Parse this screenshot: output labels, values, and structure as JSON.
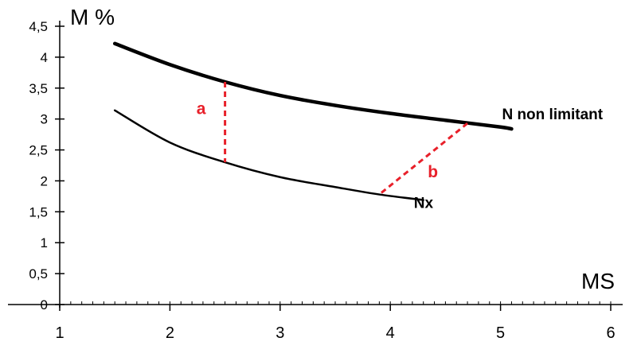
{
  "chart_data": {
    "type": "line",
    "ylabel": "M %",
    "xlabel": "MS",
    "xlim": [
      1,
      6
    ],
    "ylim": [
      0,
      4.5
    ],
    "x_ticks": [
      "1",
      "2",
      "3",
      "4",
      "5",
      "6"
    ],
    "y_ticks": [
      "0",
      "0,5",
      "1",
      "1,5",
      "2",
      "2,5",
      "3",
      "3,5",
      "4",
      "4,5"
    ],
    "grid": false,
    "series": [
      {
        "name": "N non limitant",
        "color": "#000000",
        "x": [
          1.5,
          2,
          2.5,
          3,
          3.5,
          4,
          4.5,
          5,
          5.1
        ],
        "y": [
          4.22,
          3.88,
          3.6,
          3.38,
          3.22,
          3.09,
          2.98,
          2.87,
          2.84
        ]
      },
      {
        "name": "Nx",
        "color": "#000000",
        "x": [
          1.5,
          2,
          2.5,
          3,
          3.5,
          3.9,
          4.3
        ],
        "y": [
          3.14,
          2.62,
          2.3,
          2.06,
          1.9,
          1.78,
          1.69
        ]
      }
    ],
    "annotations": [
      {
        "label": "a",
        "color": "#e8202a",
        "x1": 2.5,
        "y1": 3.6,
        "x2": 2.5,
        "y2": 2.3
      },
      {
        "label": "b",
        "color": "#e8202a",
        "x1": 4.7,
        "y1": 2.93,
        "x2": 3.9,
        "y2": 1.78
      }
    ]
  }
}
